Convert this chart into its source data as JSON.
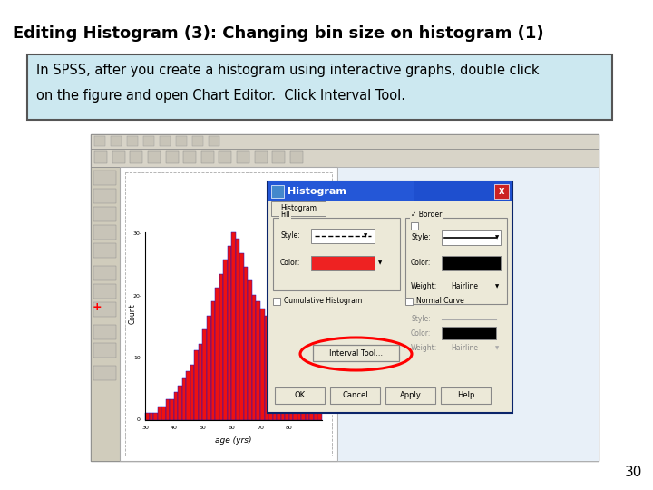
{
  "title": "Editing Histogram (3): Changing bin size on histogram (1)",
  "title_fontsize": 13,
  "box_text_line1": "In SPSS, after you create a histogram using interactive graphs, double click",
  "box_text_line2": "on the figure and open Chart Editor.  Click Interval Tool.",
  "box_bg": "#cce8f0",
  "box_border": "#555555",
  "bg_color": "#ffffff",
  "page_number": "30",
  "hist_bars": [
    1,
    1,
    1,
    2,
    2,
    3,
    3,
    4,
    5,
    6,
    7,
    8,
    10,
    11,
    13,
    15,
    17,
    19,
    21,
    23,
    25,
    27,
    26,
    24,
    22,
    20,
    18,
    17,
    16,
    15,
    14,
    13,
    11,
    9,
    7,
    5,
    4,
    3,
    2,
    2,
    1,
    1,
    1
  ],
  "toolbar_bg": "#e8e4d8",
  "window_bg": "#ece9d8",
  "dialog_title_bg": "#0a246a",
  "dialog_border": "#0a246a",
  "bar_color": "#ee1111",
  "bar_edge": "#1111cc"
}
